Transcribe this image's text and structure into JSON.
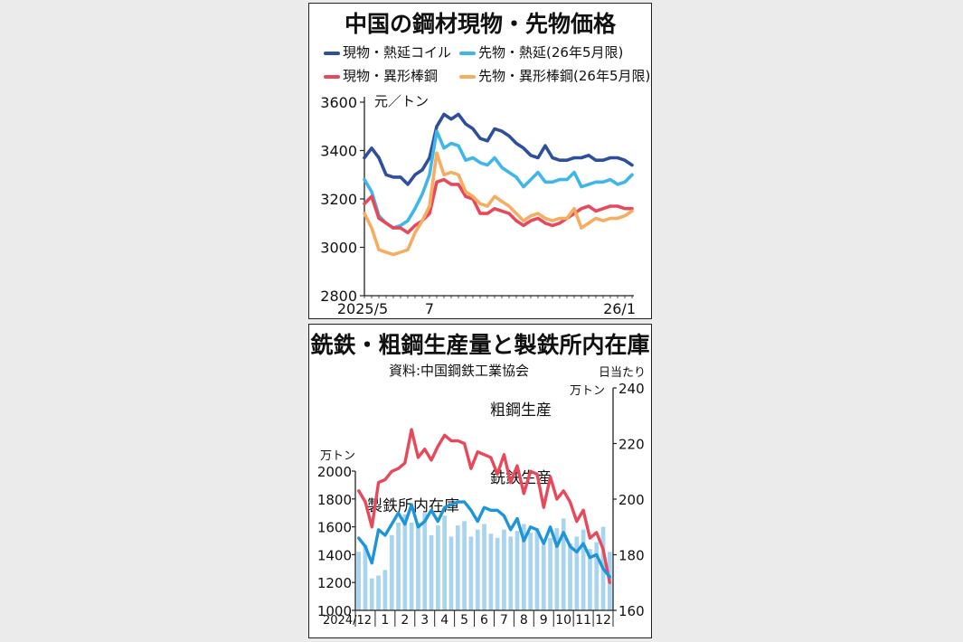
{
  "panel1": {
    "title": "中国の鋼材現物・先物価格",
    "unit": "元／トン",
    "legend": [
      {
        "label": "現物・熱延コイル",
        "color": "#2e4f9e"
      },
      {
        "label": "先物・熱延(26年5月限)",
        "color": "#3fb6ea"
      },
      {
        "label": "現物・異形棒鋼",
        "color": "#e8495a"
      },
      {
        "label": "先物・異形棒鋼(26年5月限)",
        "color": "#f5ad62"
      }
    ]
  },
  "panel2": {
    "title": "銑鉄・粗鋼生産量と製鉄所内在庫",
    "source": "資料:中国鋼鉄工業協会",
    "right_unit_1": "日当たり",
    "right_unit_2": "万トン",
    "left_unit": "万トン",
    "label_crude": "粗鋼生産",
    "label_pig": "銑鉄生産",
    "label_inventory": "製鉄所内在庫"
  },
  "chart_data": [
    {
      "type": "line",
      "title": "中国の鋼材現物・先物価格",
      "ylabel": "元／トン",
      "ylim": [
        2800,
        3600
      ],
      "yticks": [
        2800,
        3000,
        3200,
        3400,
        3600
      ],
      "x_tick_labels": [
        {
          "label": "2025/5",
          "index": 0
        },
        {
          "label": "7",
          "index": 9
        },
        {
          "label": "26/1",
          "index": 37
        }
      ],
      "grid": false,
      "series": [
        {
          "name": "現物・熱延コイル",
          "color": "#2e4f9e",
          "values": [
            3370,
            3410,
            3370,
            3300,
            3290,
            3290,
            3260,
            3300,
            3320,
            3370,
            3500,
            3550,
            3530,
            3550,
            3510,
            3490,
            3450,
            3440,
            3490,
            3480,
            3460,
            3430,
            3410,
            3380,
            3370,
            3420,
            3370,
            3360,
            3360,
            3370,
            3370,
            3380,
            3360,
            3360,
            3370,
            3370,
            3360,
            3340
          ]
        },
        {
          "name": "先物・熱延(26年5月限)",
          "color": "#3fb6ea",
          "values": [
            3280,
            3230,
            3130,
            3100,
            3080,
            3090,
            3110,
            3160,
            3220,
            3300,
            3480,
            3410,
            3430,
            3420,
            3360,
            3370,
            3350,
            3340,
            3370,
            3330,
            3310,
            3290,
            3250,
            3280,
            3310,
            3270,
            3270,
            3280,
            3280,
            3310,
            3250,
            3260,
            3270,
            3270,
            3280,
            3260,
            3270,
            3300
          ]
        },
        {
          "name": "現物・異形棒鋼",
          "color": "#e8495a",
          "values": [
            3180,
            3210,
            3120,
            3100,
            3080,
            3080,
            3060,
            3090,
            3110,
            3140,
            3270,
            3280,
            3260,
            3260,
            3210,
            3200,
            3140,
            3140,
            3160,
            3150,
            3140,
            3110,
            3090,
            3110,
            3120,
            3100,
            3090,
            3100,
            3120,
            3140,
            3160,
            3170,
            3150,
            3160,
            3170,
            3170,
            3160,
            3160
          ]
        },
        {
          "name": "先物・異形棒鋼(26年5月限)",
          "color": "#f5ad62",
          "values": [
            3140,
            3080,
            2990,
            2980,
            2970,
            2980,
            2990,
            3060,
            3110,
            3170,
            3390,
            3300,
            3310,
            3300,
            3230,
            3210,
            3180,
            3170,
            3210,
            3190,
            3170,
            3140,
            3110,
            3130,
            3140,
            3120,
            3110,
            3120,
            3120,
            3160,
            3080,
            3100,
            3120,
            3110,
            3120,
            3120,
            3130,
            3150
          ]
        }
      ]
    },
    {
      "type": "bar",
      "title": "銑鉄・粗鋼生産量と製鉄所内在庫",
      "x_tick_labels": [
        "2024/12",
        "1",
        "2",
        "3",
        "4",
        "5",
        "6",
        "7",
        "8",
        "9",
        "10",
        "11",
        "12"
      ],
      "left_axis": {
        "unit": "万トン",
        "ylim": [
          1000,
          2000
        ],
        "yticks": [
          1000,
          1200,
          1400,
          1600,
          1800,
          2000
        ]
      },
      "right_axis": {
        "unit": "万トン",
        "ylim": [
          160,
          240
        ],
        "yticks": [
          160,
          180,
          200,
          220,
          240
        ]
      },
      "series": [
        {
          "name": "製鉄所内在庫",
          "axis": "left",
          "color": "#a8d4ef",
          "values": [
            1420,
            1470,
            1230,
            1250,
            1290,
            1540,
            1630,
            1690,
            1630,
            1630,
            1700,
            1540,
            1610,
            1680,
            1530,
            1610,
            1640,
            1530,
            1580,
            1620,
            1550,
            1520,
            1580,
            1530,
            1570,
            1620,
            1560,
            1590,
            1470,
            1520,
            1590,
            1660,
            1480,
            1530,
            1580,
            1440,
            1490,
            1600,
            1420
          ]
        },
        {
          "name": "粗鋼生産",
          "axis": "right",
          "color": "#e8495a",
          "values": [
            203,
            199,
            190,
            206,
            207,
            210,
            211,
            213,
            225,
            215,
            218,
            214,
            219,
            223,
            221,
            221,
            220,
            211,
            217,
            216,
            215,
            209,
            216,
            206,
            212,
            202,
            210,
            209,
            197,
            208,
            200,
            203,
            199,
            192,
            196,
            186,
            188,
            182,
            170
          ]
        },
        {
          "name": "銑鉄生産",
          "axis": "right",
          "color": "#1d95d8",
          "values": [
            186,
            183,
            177,
            189,
            187,
            191,
            195,
            191,
            198,
            190,
            192,
            196,
            192,
            197,
            198,
            199,
            199,
            196,
            192,
            197,
            196,
            196,
            194,
            189,
            193,
            185,
            190,
            189,
            184,
            190,
            183,
            188,
            183,
            181,
            184,
            179,
            180,
            175,
            172
          ]
        }
      ]
    }
  ]
}
